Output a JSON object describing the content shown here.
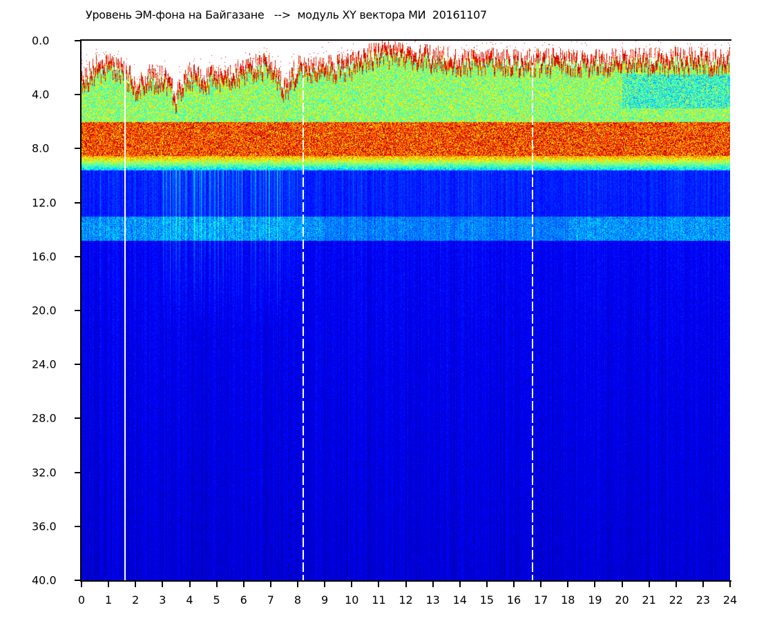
{
  "chart_data": {
    "type": "heatmap",
    "title": "Уровень ЭМ-фона на Байгазане   -->  модуль XY вектора МИ  20161107",
    "xlabel": "",
    "ylabel": "",
    "xlim": [
      0,
      24
    ],
    "ylim": [
      0,
      40
    ],
    "y_inverted": true,
    "x_ticks": [
      "0",
      "1",
      "2",
      "3",
      "4",
      "5",
      "6",
      "7",
      "8",
      "9",
      "10",
      "11",
      "12",
      "13",
      "14",
      "15",
      "16",
      "17",
      "18",
      "19",
      "20",
      "21",
      "22",
      "23",
      "24"
    ],
    "y_ticks": [
      "0.0",
      "4.0",
      "8.0",
      "12.0",
      "16.0",
      "20.0",
      "24.0",
      "28.0",
      "32.0",
      "36.0",
      "40.0"
    ],
    "colormap": "jet",
    "signal_upper_edge": {
      "x": [
        0,
        0.5,
        1,
        1.5,
        2,
        2.5,
        3,
        3.5,
        4,
        4.5,
        5,
        5.5,
        6,
        6.5,
        7,
        7.5,
        8,
        8.5,
        9,
        10,
        11,
        12,
        13,
        14,
        16,
        18,
        20,
        22,
        24
      ],
      "y": [
        3.0,
        1.8,
        1.5,
        2.0,
        3.0,
        2.5,
        2.5,
        4.0,
        2.2,
        2.5,
        2.5,
        2.2,
        2.0,
        1.6,
        1.5,
        3.5,
        1.8,
        2.0,
        1.8,
        1.5,
        0.6,
        0.8,
        1.0,
        1.2,
        1.3,
        1.3,
        1.3,
        1.2,
        1.2
      ]
    },
    "strong_band_y": [
      6.5,
      8.5
    ],
    "weak_band_y": [
      13.0,
      14.8
    ],
    "data_gaps_x": [
      1.6,
      8.2,
      16.7
    ],
    "grid": false
  }
}
